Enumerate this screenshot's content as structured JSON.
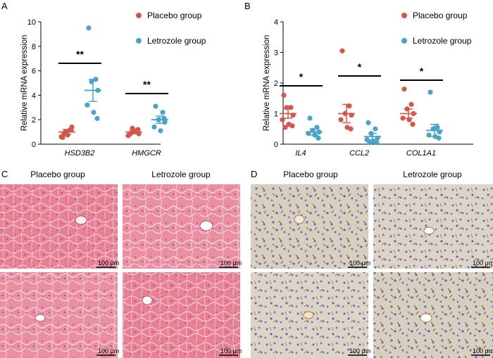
{
  "colors": {
    "placebo": "#D2584B",
    "letrozole": "#4BA3C8"
  },
  "legend": {
    "placebo": "Placebo group",
    "letrozole": "Letrozole group"
  },
  "chart_data": [
    {
      "panel": "A",
      "type": "scatter",
      "ylabel": "Relative mRNA expression",
      "ylim": [
        0,
        10
      ],
      "yticks": [
        0,
        2,
        4,
        6,
        8,
        10
      ],
      "categories": [
        "HSD3B2",
        "HMGCR"
      ],
      "series": [
        {
          "name": "Placebo group",
          "points": [
            [
              0.55,
              1.15,
              1.0,
              1.4,
              0.6,
              0.75,
              1.15,
              0.85
            ],
            [
              0.8,
              1.0,
              1.3,
              0.85,
              0.7,
              1.1,
              1.2,
              0.9
            ]
          ],
          "mean": [
            1.0,
            1.0
          ],
          "sem": [
            0.2,
            0.15
          ]
        },
        {
          "name": "Letrozole group",
          "points": [
            [
              9.5,
              5.3,
              5.1,
              4.4,
              3.2,
              2.6,
              2.1
            ],
            [
              3.1,
              2.6,
              2.0,
              1.8,
              1.4,
              1.1,
              2.1
            ]
          ],
          "mean": [
            4.4,
            2.0
          ],
          "sem": [
            0.9,
            0.3
          ]
        }
      ],
      "significance": [
        "**",
        "**"
      ]
    },
    {
      "panel": "B",
      "type": "scatter",
      "ylabel": "Relative mRNA expression",
      "ylim": [
        0,
        4
      ],
      "yticks": [
        0,
        1,
        2,
        3,
        4
      ],
      "categories": [
        "IL4",
        "CCL2",
        "COL1A1"
      ],
      "series": [
        {
          "name": "Placebo group",
          "points": [
            [
              1.6,
              1.2,
              1.2,
              0.95,
              0.8,
              0.65,
              0.6,
              0.55
            ],
            [
              3.05,
              1.25,
              1.0,
              0.95,
              0.8,
              0.55,
              0.5
            ],
            [
              1.8,
              1.3,
              1.15,
              1.0,
              0.85,
              0.8,
              0.65
            ]
          ],
          "mean": [
            1.0,
            1.0,
            1.0
          ],
          "sem": [
            0.15,
            0.3,
            0.15
          ]
        },
        {
          "name": "Letrozole group",
          "points": [
            [
              0.85,
              0.55,
              0.45,
              0.4,
              0.35,
              0.3,
              0.2
            ],
            [
              0.7,
              0.5,
              0.35,
              0.2,
              0.15,
              0.1,
              0.05,
              0.05
            ],
            [
              1.7,
              0.55,
              0.5,
              0.4,
              0.3,
              0.25,
              0.2
            ]
          ],
          "mean": [
            0.4,
            0.25,
            0.45
          ],
          "sem": [
            0.1,
            0.1,
            0.2
          ]
        }
      ],
      "significance": [
        "*",
        "*",
        "*"
      ]
    }
  ],
  "panels": {
    "A": "A",
    "B": "B",
    "C": "C",
    "D": "D"
  },
  "micro": {
    "placebo_label": "Placebo group",
    "letrozole_label": "Letrozole group",
    "scale_bar": "100 μm"
  }
}
